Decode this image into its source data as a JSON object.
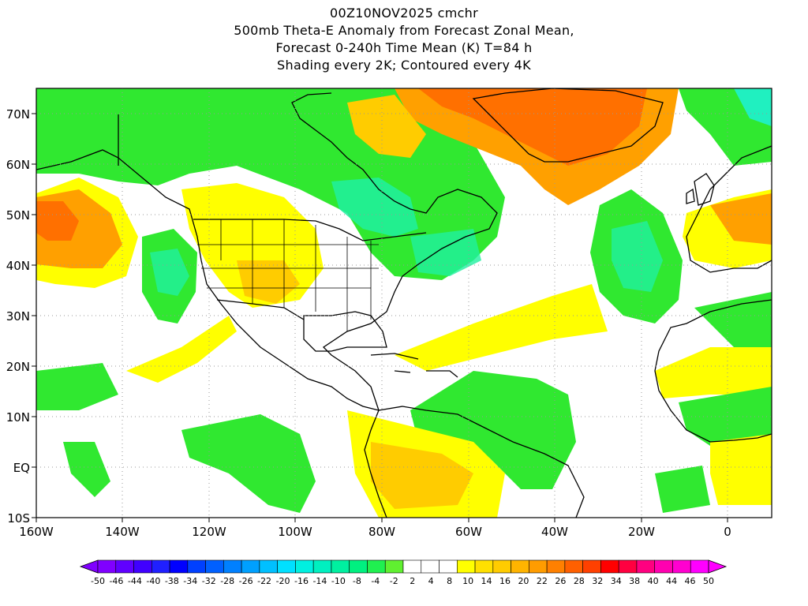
{
  "title": {
    "line1": "00Z10NOV2025 cmchr",
    "line2": "500mb Theta-E Anomaly from Forecast Zonal Mean,",
    "line3": "Forecast 0-240h Time Mean (K) T=84 h",
    "line4": "Shading every 2K; Contoured every 4K"
  },
  "axes": {
    "lat_labels": [
      "70N",
      "60N",
      "50N",
      "40N",
      "30N",
      "20N",
      "10N",
      "EQ",
      "10S"
    ],
    "lon_labels": [
      "160W",
      "140W",
      "120W",
      "100W",
      "80W",
      "60W",
      "40W",
      "20W",
      "0"
    ],
    "lat_range": [
      -10,
      75
    ],
    "lon_range": [
      -160,
      10
    ],
    "grid": "dotted"
  },
  "colorbar": {
    "labels": [
      "-50",
      "-46",
      "-44",
      "-40",
      "-38",
      "-34",
      "-32",
      "-28",
      "-26",
      "-22",
      "-20",
      "-16",
      "-14",
      "-10",
      "-8",
      "-4",
      "-2",
      "2",
      "4",
      "8",
      "10",
      "14",
      "16",
      "20",
      "22",
      "26",
      "28",
      "32",
      "34",
      "38",
      "40",
      "44",
      "46",
      "50"
    ],
    "colors": [
      "#8000ff",
      "#6000ff",
      "#4000ff",
      "#2020ff",
      "#0000ff",
      "#0040ff",
      "#0060ff",
      "#0080ff",
      "#00a0ff",
      "#00c0ff",
      "#00e0ff",
      "#00f0e0",
      "#00f0c0",
      "#00f0a0",
      "#00f080",
      "#20f050",
      "#60f030",
      "#ffffff",
      "#ffffff",
      "#ffffff",
      "#ffff00",
      "#ffe000",
      "#ffcc00",
      "#ffb400",
      "#ff9c00",
      "#ff8000",
      "#ff6000",
      "#ff4000",
      "#ff0000",
      "#ff0040",
      "#ff0080",
      "#ff00b0",
      "#ff00d0",
      "#ff00ff"
    ]
  },
  "colors": {
    "green": "#30e830",
    "light_green": "#60f060",
    "teal": "#20f0a0",
    "yellow": "#ffff00",
    "light_orange": "#ffcc00",
    "orange": "#ffa000",
    "dark_orange": "#ff7000"
  }
}
